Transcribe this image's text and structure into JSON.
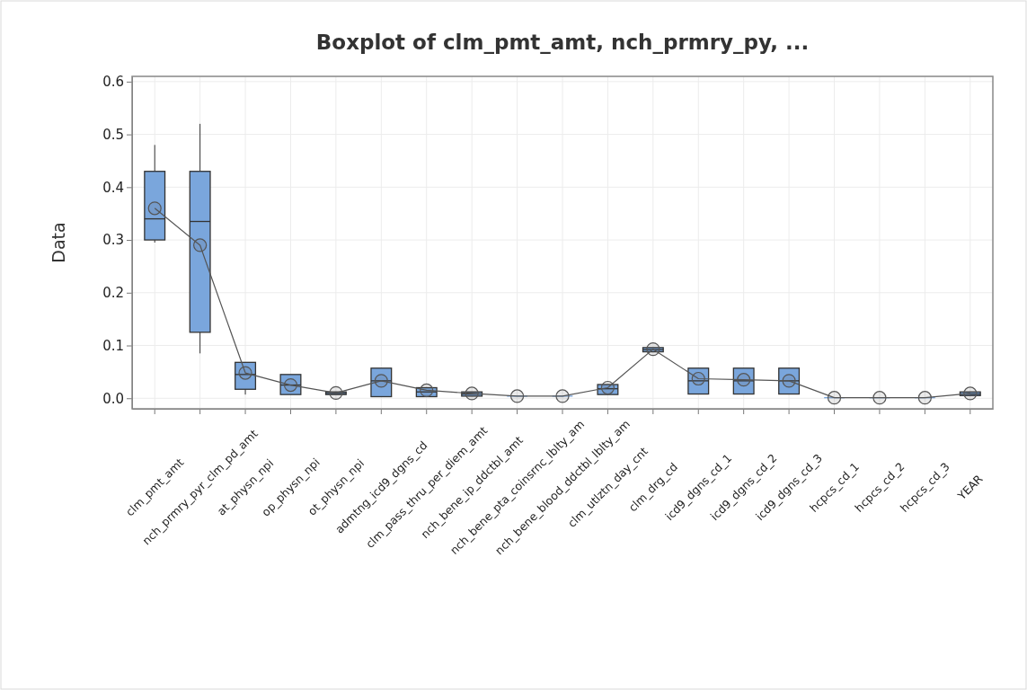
{
  "chart_data": {
    "type": "box",
    "title": "Boxplot of clm_pmt_amt, nch_prmry_py, ...",
    "ylabel": "Data",
    "categories": [
      "clm_pmt_amt",
      "nch_prmry_pyr_clm_pd_amt",
      "at_physn_npi",
      "op_physn_npi",
      "ot_physn_npi",
      "admtng_icd9_dgns_cd",
      "clm_pass_thru_per_diem_amt",
      "nch_bene_ip_ddctbl_amt",
      "nch_bene_pta_coinsrnc_lblty_am",
      "nch_bene_blood_ddctbl_lblty_am",
      "clm_utlztn_day_cnt",
      "clm_drg_cd",
      "icd9_dgns_cd_1",
      "icd9_dgns_cd_2",
      "icd9_dgns_cd_3",
      "hcpcs_cd_1",
      "hcpcs_cd_2",
      "hcpcs_cd_3",
      "YEAR"
    ],
    "series": [
      {
        "color": "#7aa6dc",
        "boxes": [
          {
            "low": 0.295,
            "q1": 0.3,
            "median": 0.34,
            "q3": 0.43,
            "high": 0.48
          },
          {
            "low": 0.085,
            "q1": 0.125,
            "median": 0.335,
            "q3": 0.43,
            "high": 0.52
          },
          {
            "low": 0.007,
            "q1": 0.017,
            "median": 0.045,
            "q3": 0.068,
            "high": 0.068
          },
          {
            "low": 0.007,
            "q1": 0.007,
            "median": 0.025,
            "q3": 0.045,
            "high": 0.045
          },
          {
            "low": 0.007,
            "q1": 0.007,
            "median": 0.009,
            "q3": 0.012,
            "high": 0.012
          },
          {
            "low": 0.003,
            "q1": 0.003,
            "median": 0.033,
            "q3": 0.057,
            "high": 0.057
          },
          {
            "low": 0.003,
            "q1": 0.003,
            "median": 0.012,
            "q3": 0.02,
            "high": 0.02
          },
          {
            "low": 0.004,
            "q1": 0.004,
            "median": 0.008,
            "q3": 0.012,
            "high": 0.012
          },
          {
            "low": 0.004,
            "q1": 0.004,
            "median": 0.004,
            "q3": 0.004,
            "high": 0.004
          },
          {
            "low": 0.004,
            "q1": 0.004,
            "median": 0.004,
            "q3": 0.004,
            "high": 0.004
          },
          {
            "low": 0.007,
            "q1": 0.007,
            "median": 0.018,
            "q3": 0.026,
            "high": 0.026
          },
          {
            "low": 0.088,
            "q1": 0.088,
            "median": 0.092,
            "q3": 0.096,
            "high": 0.096
          },
          {
            "low": 0.008,
            "q1": 0.008,
            "median": 0.033,
            "q3": 0.057,
            "high": 0.057
          },
          {
            "low": 0.008,
            "q1": 0.008,
            "median": 0.033,
            "q3": 0.057,
            "high": 0.057
          },
          {
            "low": 0.008,
            "q1": 0.008,
            "median": 0.033,
            "q3": 0.057,
            "high": 0.057
          },
          {
            "low": 0.001,
            "q1": 0.001,
            "median": 0.001,
            "q3": 0.001,
            "high": 0.001
          },
          {
            "low": 0.001,
            "q1": 0.001,
            "median": 0.001,
            "q3": 0.001,
            "high": 0.001
          },
          {
            "low": 0.001,
            "q1": 0.001,
            "median": 0.001,
            "q3": 0.001,
            "high": 0.001
          },
          {
            "low": 0.005,
            "q1": 0.005,
            "median": 0.008,
            "q3": 0.012,
            "high": 0.012
          }
        ]
      },
      {
        "type": "line",
        "color": "#555555",
        "marker": "circle",
        "values": [
          0.36,
          0.29,
          0.048,
          0.025,
          0.01,
          0.033,
          0.015,
          0.009,
          0.004,
          0.004,
          0.02,
          0.093,
          0.037,
          0.035,
          0.033,
          0.001,
          0.001,
          0.001,
          0.009
        ]
      }
    ],
    "ylim": [
      -0.02,
      0.61
    ],
    "yticks": [
      {
        "value": 0,
        "label": "0.0"
      },
      {
        "value": 0.1,
        "label": "0.1"
      },
      {
        "value": 0.2,
        "label": "0.2"
      },
      {
        "value": 0.3,
        "label": "0.3"
      },
      {
        "value": 0.4,
        "label": "0.4"
      },
      {
        "value": 0.5,
        "label": "0.5"
      },
      {
        "value": 0.6,
        "label": "0.6"
      }
    ],
    "grid": true
  }
}
